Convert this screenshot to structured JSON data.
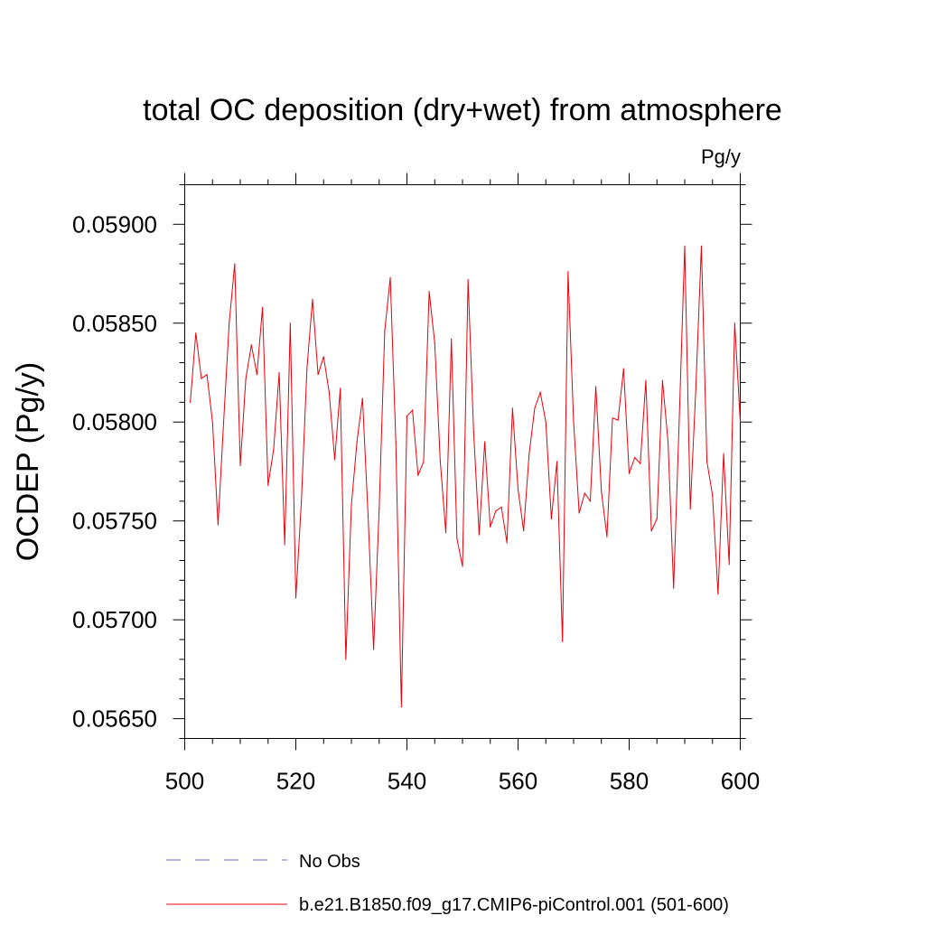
{
  "chart_data": {
    "type": "line",
    "title": "total OC deposition (dry+wet) from atmosphere",
    "units_label": "Pg/y",
    "ylabel": "OCDEP  (Pg/y)",
    "xlabel": "",
    "xlim": [
      500,
      600
    ],
    "ylim": [
      0.0564,
      0.0592
    ],
    "x_ticks": [
      500,
      520,
      540,
      560,
      580,
      600
    ],
    "x_tick_labels": [
      "500",
      "520",
      "540",
      "560",
      "580",
      "600"
    ],
    "y_ticks": [
      0.0565,
      0.057,
      0.0575,
      0.058,
      0.0585,
      0.059
    ],
    "y_tick_labels": [
      "0.05650",
      "0.05700",
      "0.05750",
      "0.05800",
      "0.05850",
      "0.05900"
    ],
    "legend": [
      {
        "label": "No Obs",
        "style": "dashed",
        "color": "#7b68c8"
      },
      {
        "label": "b.e21.B1850.f09_g17.CMIP6-piControl.001 (501-600)",
        "style": "solid",
        "color": "#e8000b"
      }
    ],
    "series": [
      {
        "name": "b.e21.B1850.f09_g17.CMIP6-piControl.001 (501-600)",
        "color": "#e8000b",
        "x": [
          501,
          502,
          503,
          504,
          505,
          506,
          507,
          508,
          509,
          510,
          511,
          512,
          513,
          514,
          515,
          516,
          517,
          518,
          519,
          520,
          521,
          522,
          523,
          524,
          525,
          526,
          527,
          528,
          529,
          530,
          531,
          532,
          533,
          534,
          535,
          536,
          537,
          538,
          539,
          540,
          541,
          542,
          543,
          544,
          545,
          546,
          547,
          548,
          549,
          550,
          551,
          552,
          553,
          554,
          555,
          556,
          557,
          558,
          559,
          560,
          561,
          562,
          563,
          564,
          565,
          566,
          567,
          568,
          569,
          570,
          571,
          572,
          573,
          574,
          575,
          576,
          577,
          578,
          579,
          580,
          581,
          582,
          583,
          584,
          585,
          586,
          587,
          588,
          589,
          590,
          591,
          592,
          593,
          594,
          595,
          596,
          597,
          598,
          599,
          600
        ],
        "values": [
          0.0581,
          0.05845,
          0.05822,
          0.05824,
          0.058,
          0.05748,
          0.058,
          0.0585,
          0.0588,
          0.05778,
          0.05822,
          0.05839,
          0.05824,
          0.05858,
          0.05768,
          0.05786,
          0.05825,
          0.05738,
          0.0585,
          0.05711,
          0.0576,
          0.05827,
          0.05862,
          0.05824,
          0.05833,
          0.05815,
          0.05781,
          0.05817,
          0.0568,
          0.05758,
          0.0579,
          0.05812,
          0.05753,
          0.05685,
          0.05756,
          0.05846,
          0.05873,
          0.0579,
          0.05656,
          0.05803,
          0.05806,
          0.05773,
          0.0578,
          0.05866,
          0.0584,
          0.0578,
          0.05744,
          0.05842,
          0.05741,
          0.05727,
          0.05872,
          0.05795,
          0.05743,
          0.0579,
          0.05747,
          0.05755,
          0.05757,
          0.05739,
          0.05807,
          0.05766,
          0.05745,
          0.05784,
          0.05807,
          0.05815,
          0.058,
          0.05751,
          0.0578,
          0.05689,
          0.05876,
          0.058,
          0.05754,
          0.05764,
          0.0576,
          0.05818,
          0.05765,
          0.05742,
          0.05802,
          0.05801,
          0.05827,
          0.05774,
          0.05782,
          0.05779,
          0.05821,
          0.05745,
          0.05751,
          0.05821,
          0.0579,
          0.05716,
          0.058,
          0.05889,
          0.05756,
          0.05817,
          0.05889,
          0.0578,
          0.05763,
          0.05713,
          0.05784,
          0.05728,
          0.0585,
          0.058
        ]
      }
    ]
  }
}
